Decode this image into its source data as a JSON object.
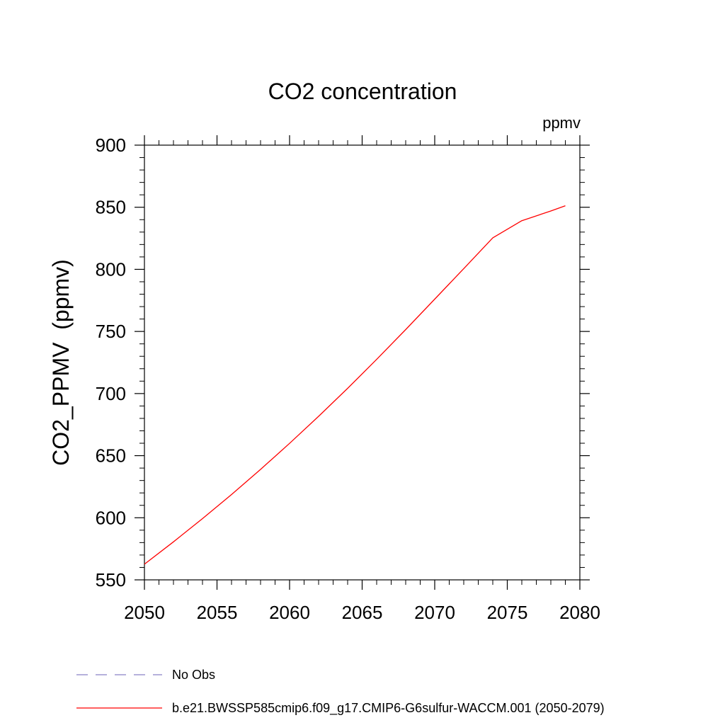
{
  "chart_data": {
    "type": "line",
    "title": "CO2 concentration",
    "units": "ppmv",
    "ylabel": "CO2_PPMV  (ppmv)",
    "xlabel": "",
    "xlim": [
      2050,
      2080
    ],
    "ylim": [
      550,
      900
    ],
    "x_ticks": [
      "2050",
      "2055",
      "2060",
      "2065",
      "2070",
      "2075",
      "2080"
    ],
    "y_ticks": [
      "550",
      "600",
      "650",
      "700",
      "750",
      "800",
      "850",
      "900"
    ],
    "series": [
      {
        "name": "b.e21.BWSSP585cmip6.f09_g17.CMIP6-G6sulfur-WACCM.001 (2050-2079)",
        "color": "#ff0000",
        "x": [
          2050,
          2052,
          2054,
          2056,
          2058,
          2060,
          2062,
          2064,
          2066,
          2068,
          2070,
          2072,
          2074,
          2076,
          2078,
          2079
        ],
        "y": [
          562.6,
          580.6,
          599.3,
          618.7,
          638.9,
          659.9,
          681.7,
          704.2,
          727.5,
          751.5,
          776.0,
          800.6,
          825.4,
          839.2,
          847.0,
          851.2
        ]
      }
    ],
    "legend": {
      "placement": "bottom-left",
      "entries": [
        {
          "label": "No Obs",
          "style": "dashed",
          "color": "#8a82c8"
        },
        {
          "label": "b.e21.BWSSP585cmip6.f09_g17.CMIP6-G6sulfur-WACCM.001 (2050-2079)",
          "style": "solid",
          "color": "#ff0000"
        }
      ]
    }
  }
}
